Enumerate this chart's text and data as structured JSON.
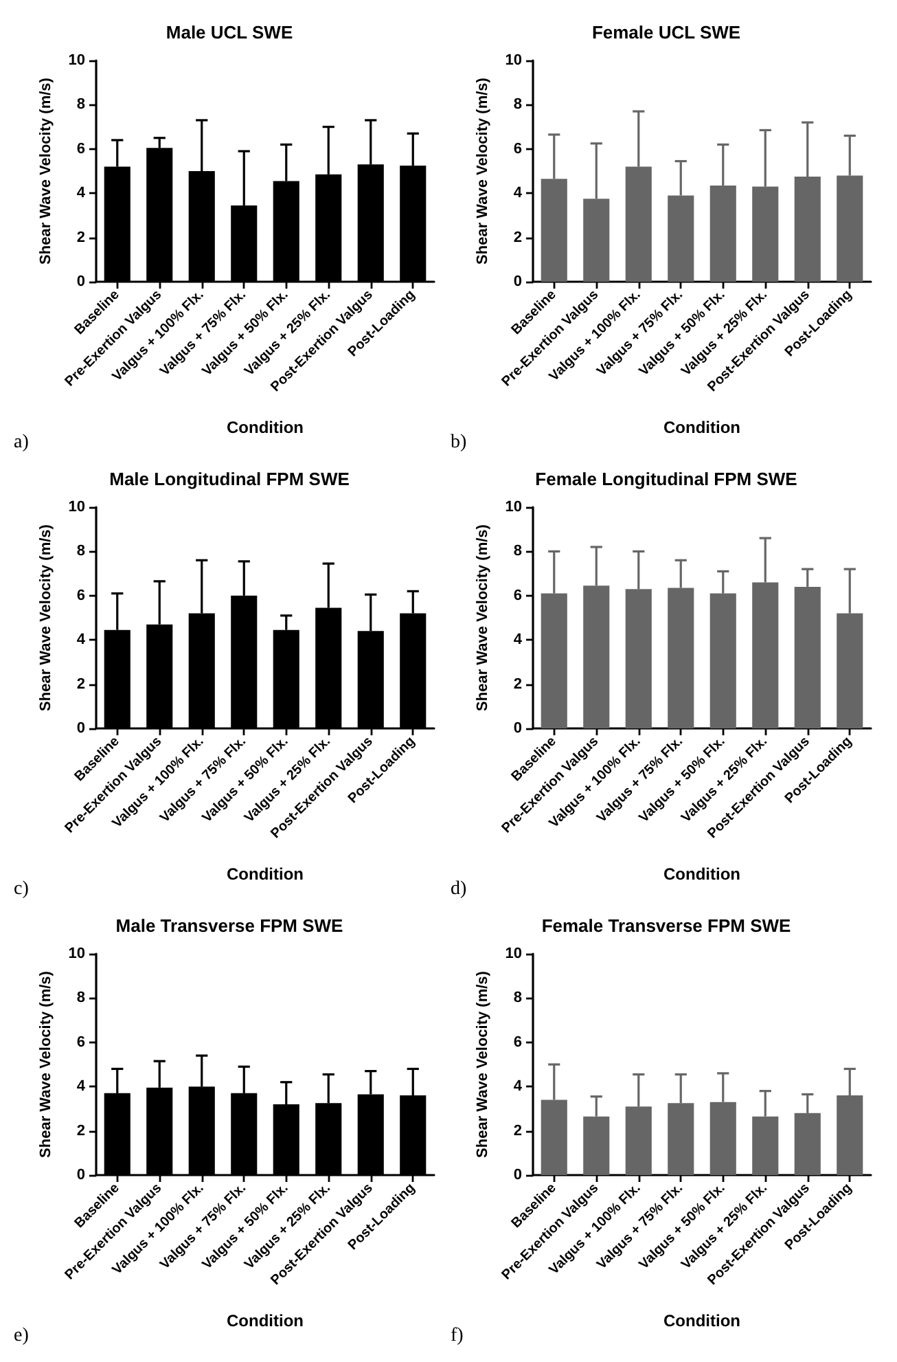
{
  "chart_data": [
    {
      "type": "bar",
      "title": "Male UCL SWE",
      "xlabel": "Condition",
      "ylabel": "Shear Wave Velocity (m/s)",
      "annotations": [
        "a)"
      ],
      "categories": [
        "Baseline",
        "Pre-Exertion Valgus",
        "Valgus + 100% Flx.",
        "Valgus + 75% Flx.",
        "Valgus + 50% Flx.",
        "Valgus + 25% Flx.",
        "Post-Exertion Valgus",
        "Post-Loading"
      ],
      "color": "#000000",
      "values": [
        5.2,
        6.05,
        5.0,
        3.45,
        4.55,
        4.85,
        5.3,
        5.25
      ],
      "errors": [
        [
          5.2,
          6.4
        ],
        [
          6.05,
          6.5
        ],
        [
          5.0,
          7.3
        ],
        [
          3.45,
          5.9
        ],
        [
          4.55,
          6.2
        ],
        [
          4.85,
          7.0
        ],
        [
          5.3,
          7.3
        ],
        [
          5.25,
          6.7
        ]
      ],
      "ylim": [
        0,
        10
      ],
      "yticks": [
        0,
        2,
        4,
        6,
        8,
        10
      ]
    },
    {
      "type": "bar",
      "title": "Female UCL SWE",
      "xlabel": "Condition",
      "ylabel": "Shear Wave Velocity (m/s)",
      "annotations": [
        "b)"
      ],
      "categories": [
        "Baseline",
        "Pre-Exertion Valgus",
        "Valgus + 100% Flx.",
        "Valgus + 75% Flx.",
        "Valgus + 50% Flx.",
        "Valgus + 25% Flx.",
        "Post-Exertion Valgus",
        "Post-Loading"
      ],
      "color": "#666666",
      "values": [
        4.65,
        3.75,
        5.2,
        3.9,
        4.35,
        4.3,
        4.75,
        4.8
      ],
      "errors": [
        [
          4.65,
          6.65
        ],
        [
          3.75,
          6.25
        ],
        [
          5.2,
          7.7
        ],
        [
          3.9,
          5.45
        ],
        [
          4.35,
          6.2
        ],
        [
          4.3,
          6.85
        ],
        [
          4.75,
          7.2
        ],
        [
          4.8,
          6.6
        ]
      ],
      "ylim": [
        0,
        10
      ],
      "yticks": [
        0,
        2,
        4,
        6,
        8,
        10
      ]
    },
    {
      "type": "bar",
      "title": "Male Longitudinal FPM SWE",
      "xlabel": "Condition",
      "ylabel": "Shear Wave Velocity (m/s)",
      "annotations": [
        "c)"
      ],
      "categories": [
        "Baseline",
        "Pre-Exertion Valgus",
        "Valgus + 100% Flx.",
        "Valgus + 75% Flx.",
        "Valgus + 50% Flx.",
        "Valgus + 25% Flx.",
        "Post-Exertion Valgus",
        "Post-Loading"
      ],
      "color": "#000000",
      "values": [
        4.45,
        4.7,
        5.2,
        6.0,
        4.45,
        5.45,
        4.4,
        5.2
      ],
      "errors": [
        [
          4.45,
          6.1
        ],
        [
          4.7,
          6.65
        ],
        [
          5.2,
          7.6
        ],
        [
          6.0,
          7.55
        ],
        [
          4.45,
          5.1
        ],
        [
          5.45,
          7.45
        ],
        [
          4.4,
          6.05
        ],
        [
          5.2,
          6.2
        ]
      ],
      "ylim": [
        0,
        10
      ],
      "yticks": [
        0,
        2,
        4,
        6,
        8,
        10
      ]
    },
    {
      "type": "bar",
      "title": "Female Longitudinal FPM SWE",
      "xlabel": "Condition",
      "ylabel": "Shear Wave Velocity (m/s)",
      "annotations": [
        "d)"
      ],
      "categories": [
        "Baseline",
        "Pre-Exertion Valgus",
        "Valgus + 100% Flx.",
        "Valgus + 75% Flx.",
        "Valgus + 50% Flx.",
        "Valgus + 25% Flx.",
        "Post-Exertion Valgus",
        "Post-Loading"
      ],
      "color": "#666666",
      "values": [
        6.1,
        6.45,
        6.3,
        6.35,
        6.1,
        6.6,
        6.4,
        5.2
      ],
      "errors": [
        [
          6.1,
          8.0
        ],
        [
          6.45,
          8.2
        ],
        [
          6.3,
          8.0
        ],
        [
          6.35,
          7.6
        ],
        [
          6.1,
          7.1
        ],
        [
          6.6,
          8.6
        ],
        [
          6.4,
          7.2
        ],
        [
          5.2,
          7.2
        ]
      ],
      "ylim": [
        0,
        10
      ],
      "yticks": [
        0,
        2,
        4,
        6,
        8,
        10
      ]
    },
    {
      "type": "bar",
      "title": "Male Transverse FPM SWE",
      "xlabel": "Condition",
      "ylabel": "Shear Wave Velocity (m/s)",
      "annotations": [
        "e)"
      ],
      "categories": [
        "Baseline",
        "Pre-Exertion Valgus",
        "Valgus + 100% Flx.",
        "Valgus + 75% Flx.",
        "Valgus + 50% Flx.",
        "Valgus + 25% Flx.",
        "Post-Exertion Valgus",
        "Post-Loading"
      ],
      "color": "#000000",
      "values": [
        3.7,
        3.95,
        4.0,
        3.7,
        3.2,
        3.25,
        3.65,
        3.6
      ],
      "errors": [
        [
          3.7,
          4.8
        ],
        [
          3.95,
          5.15
        ],
        [
          4.0,
          5.4
        ],
        [
          3.7,
          4.9
        ],
        [
          3.2,
          4.2
        ],
        [
          3.25,
          4.55
        ],
        [
          3.65,
          4.7
        ],
        [
          3.6,
          4.8
        ]
      ],
      "ylim": [
        0,
        10
      ],
      "yticks": [
        0,
        2,
        4,
        6,
        8,
        10
      ]
    },
    {
      "type": "bar",
      "title": "Female Transverse FPM SWE",
      "xlabel": "Condition",
      "ylabel": "Shear Wave Velocity (m/s)",
      "annotations": [
        "f)"
      ],
      "categories": [
        "Baseline",
        "Pre-Exertion Valgus",
        "Valgus + 100% Flx.",
        "Valgus + 75% Flx.",
        "Valgus + 50% Flx.",
        "Valgus + 25% Flx.",
        "Post-Exertion Valgus",
        "Post-Loading"
      ],
      "color": "#666666",
      "values": [
        3.4,
        2.65,
        3.1,
        3.25,
        3.3,
        2.65,
        2.8,
        3.6
      ],
      "errors": [
        [
          3.4,
          5.0
        ],
        [
          2.65,
          3.55
        ],
        [
          3.1,
          4.55
        ],
        [
          3.25,
          4.55
        ],
        [
          3.3,
          4.6
        ],
        [
          2.65,
          3.8
        ],
        [
          2.8,
          3.65
        ],
        [
          3.6,
          4.8
        ]
      ],
      "ylim": [
        0,
        10
      ],
      "yticks": [
        0,
        2,
        4,
        6,
        8,
        10
      ]
    }
  ]
}
